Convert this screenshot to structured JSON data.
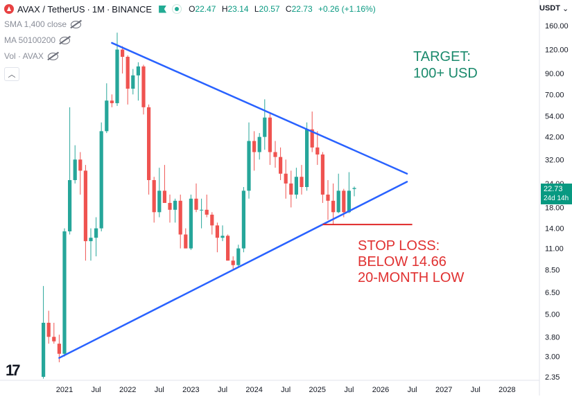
{
  "header": {
    "symbol": "AVAX / TetherUS",
    "interval": "1M",
    "exchange": "BINANCE",
    "ohlc": {
      "open_label": "O",
      "open": "22.47",
      "high_label": "H",
      "high": "23.14",
      "low_label": "L",
      "low": "20.57",
      "close_label": "C",
      "close": "22.73",
      "change": "+0.26 (+1.16%)"
    },
    "icons": [
      "avax-logo-icon",
      "flag-icon",
      "live-dot-icon"
    ]
  },
  "studies": [
    {
      "label": "SMA 1,400 close"
    },
    {
      "label": "MA 50100200"
    },
    {
      "label": "Vol · AVAX"
    }
  ],
  "currency_button": "USDT",
  "currency_caret": "⌄",
  "collapse_icon": "︿",
  "logo_text": "17",
  "price_tag": {
    "price": "22.73",
    "countdown": "24d 14h"
  },
  "annotations": {
    "target_line1": "TARGET:",
    "target_line2": "100+ USD",
    "stop_line1": "STOP LOSS:",
    "stop_line2": "BELOW 14.66",
    "stop_line3": "20-MONTH LOW"
  },
  "colors": {
    "up": "#26a69a",
    "down": "#ef5350",
    "trendline": "#2962ff",
    "stop_line": "#e02828",
    "target_text": "#1a8a6c",
    "price_tag": "#089981"
  },
  "chart_data": {
    "type": "candlestick",
    "scale": "log",
    "y_ticks": [
      160,
      120,
      90,
      70,
      54,
      42,
      32,
      24,
      18,
      14,
      11,
      8.5,
      6.5,
      5,
      3.8,
      3,
      2.35
    ],
    "y_tick_labels": [
      "160.00",
      "120.00",
      "90.00",
      "70.00",
      "54.00",
      "42.00",
      "32.00",
      "24.00",
      "18.00",
      "14.00",
      "11.00",
      "8.50",
      "6.50",
      "5.00",
      "3.80",
      "3.00",
      "2.35"
    ],
    "x_ticks": [
      "2021-01",
      "2021-07",
      "2022-01",
      "2022-07",
      "2023-01",
      "2023-07",
      "2024-01",
      "2024-07",
      "2025-01",
      "2025-07",
      "2026-01",
      "2026-07",
      "2027-01",
      "2027-07",
      "2028-01"
    ],
    "x_tick_labels": [
      "2021",
      "Jul",
      "2022",
      "Jul",
      "2023",
      "Jul",
      "2024",
      "Jul",
      "2025",
      "Jul",
      "2026",
      "Jul",
      "2027",
      "Jul",
      "2028"
    ],
    "candles": [
      {
        "d": "2020-09",
        "o": 2.35,
        "h": 7.0,
        "l": 2.3,
        "c": 4.5
      },
      {
        "d": "2020-10",
        "o": 4.5,
        "h": 5.2,
        "l": 3.5,
        "c": 3.8
      },
      {
        "d": "2020-11",
        "o": 3.8,
        "h": 4.5,
        "l": 3.5,
        "c": 3.6
      },
      {
        "d": "2020-12",
        "o": 3.5,
        "h": 3.9,
        "l": 2.8,
        "c": 3.1
      },
      {
        "d": "2021-01",
        "o": 3.1,
        "h": 14.0,
        "l": 3.0,
        "c": 13.5
      },
      {
        "d": "2021-02",
        "o": 13.5,
        "h": 60.0,
        "l": 13.0,
        "c": 25.0
      },
      {
        "d": "2021-03",
        "o": 25.0,
        "h": 38.0,
        "l": 24.0,
        "c": 32.0
      },
      {
        "d": "2021-04",
        "o": 32.0,
        "h": 35.0,
        "l": 21.0,
        "c": 28.0
      },
      {
        "d": "2021-05",
        "o": 28.0,
        "h": 30.0,
        "l": 9.5,
        "c": 12.0
      },
      {
        "d": "2021-06",
        "o": 12.0,
        "h": 14.0,
        "l": 9.5,
        "c": 12.5
      },
      {
        "d": "2021-07",
        "o": 12.5,
        "h": 16.0,
        "l": 10.0,
        "c": 14.0
      },
      {
        "d": "2021-08",
        "o": 14.0,
        "h": 50.0,
        "l": 13.5,
        "c": 45.0
      },
      {
        "d": "2021-09",
        "o": 45.0,
        "h": 80.0,
        "l": 44.0,
        "c": 65.0
      },
      {
        "d": "2021-10",
        "o": 65.0,
        "h": 70.0,
        "l": 60.0,
        "c": 63.0
      },
      {
        "d": "2021-11",
        "o": 63.0,
        "h": 147.0,
        "l": 61.0,
        "c": 120.0
      },
      {
        "d": "2021-12",
        "o": 120.0,
        "h": 125.0,
        "l": 90.0,
        "c": 110.0
      },
      {
        "d": "2022-01",
        "o": 110.0,
        "h": 112.0,
        "l": 62.0,
        "c": 75.0
      },
      {
        "d": "2022-02",
        "o": 75.0,
        "h": 95.0,
        "l": 70.0,
        "c": 88.0
      },
      {
        "d": "2022-03",
        "o": 88.0,
        "h": 103.0,
        "l": 65.0,
        "c": 98.0
      },
      {
        "d": "2022-04",
        "o": 98.0,
        "h": 100.0,
        "l": 55.0,
        "c": 60.0
      },
      {
        "d": "2022-05",
        "o": 60.0,
        "h": 62.0,
        "l": 21.0,
        "c": 25.0
      },
      {
        "d": "2022-06",
        "o": 25.0,
        "h": 26.0,
        "l": 15.0,
        "c": 17.0
      },
      {
        "d": "2022-07",
        "o": 17.0,
        "h": 29.0,
        "l": 16.0,
        "c": 22.0
      },
      {
        "d": "2022-08",
        "o": 22.0,
        "h": 30.0,
        "l": 19.0,
        "c": 19.0
      },
      {
        "d": "2022-09",
        "o": 19.0,
        "h": 21.0,
        "l": 15.0,
        "c": 17.5
      },
      {
        "d": "2022-10",
        "o": 17.5,
        "h": 20.0,
        "l": 15.0,
        "c": 19.5
      },
      {
        "d": "2022-11",
        "o": 19.5,
        "h": 21.0,
        "l": 11.0,
        "c": 13.0
      },
      {
        "d": "2022-12",
        "o": 13.0,
        "h": 14.0,
        "l": 11.0,
        "c": 11.0
      },
      {
        "d": "2023-01",
        "o": 11.0,
        "h": 21.0,
        "l": 10.8,
        "c": 20.0
      },
      {
        "d": "2023-02",
        "o": 20.0,
        "h": 24.0,
        "l": 17.0,
        "c": 17.5
      },
      {
        "d": "2023-03",
        "o": 17.5,
        "h": 20.0,
        "l": 14.0,
        "c": 17.5
      },
      {
        "d": "2023-04",
        "o": 17.5,
        "h": 21.0,
        "l": 16.0,
        "c": 16.5
      },
      {
        "d": "2023-05",
        "o": 16.5,
        "h": 17.0,
        "l": 13.0,
        "c": 14.5
      },
      {
        "d": "2023-06",
        "o": 14.5,
        "h": 15.0,
        "l": 10.5,
        "c": 12.5
      },
      {
        "d": "2023-07",
        "o": 12.5,
        "h": 14.5,
        "l": 12.0,
        "c": 12.8
      },
      {
        "d": "2023-08",
        "o": 12.8,
        "h": 13.0,
        "l": 9.5,
        "c": 9.5
      },
      {
        "d": "2023-09",
        "o": 9.5,
        "h": 10.0,
        "l": 8.6,
        "c": 9.0
      },
      {
        "d": "2023-10",
        "o": 9.0,
        "h": 11.5,
        "l": 8.8,
        "c": 11.0
      },
      {
        "d": "2023-11",
        "o": 11.0,
        "h": 23.0,
        "l": 10.5,
        "c": 22.0
      },
      {
        "d": "2023-12",
        "o": 22.0,
        "h": 50.0,
        "l": 20.0,
        "c": 40.0
      },
      {
        "d": "2024-01",
        "o": 40.0,
        "h": 45.0,
        "l": 28.0,
        "c": 35.0
      },
      {
        "d": "2024-02",
        "o": 35.0,
        "h": 44.0,
        "l": 32.0,
        "c": 42.0
      },
      {
        "d": "2024-03",
        "o": 42.0,
        "h": 66.0,
        "l": 36.0,
        "c": 53.0
      },
      {
        "d": "2024-04",
        "o": 53.0,
        "h": 56.0,
        "l": 30.0,
        "c": 35.0
      },
      {
        "d": "2024-05",
        "o": 35.0,
        "h": 40.0,
        "l": 29.0,
        "c": 33.0
      },
      {
        "d": "2024-06",
        "o": 33.0,
        "h": 37.0,
        "l": 25.0,
        "c": 27.0
      },
      {
        "d": "2024-07",
        "o": 27.0,
        "h": 32.0,
        "l": 20.0,
        "c": 24.0
      },
      {
        "d": "2024-08",
        "o": 24.0,
        "h": 28.0,
        "l": 18.0,
        "c": 21.0
      },
      {
        "d": "2024-09",
        "o": 21.0,
        "h": 29.0,
        "l": 20.0,
        "c": 26.0
      },
      {
        "d": "2024-10",
        "o": 26.0,
        "h": 30.0,
        "l": 21.0,
        "c": 23.0
      },
      {
        "d": "2024-11",
        "o": 23.0,
        "h": 50.0,
        "l": 22.0,
        "c": 46.0
      },
      {
        "d": "2024-12",
        "o": 46.0,
        "h": 57.0,
        "l": 35.0,
        "c": 37.0
      },
      {
        "d": "2025-01",
        "o": 37.0,
        "h": 45.0,
        "l": 30.0,
        "c": 34.0
      },
      {
        "d": "2025-02",
        "o": 34.0,
        "h": 35.0,
        "l": 19.0,
        "c": 21.0
      },
      {
        "d": "2025-03",
        "o": 21.0,
        "h": 25.0,
        "l": 15.5,
        "c": 19.5
      },
      {
        "d": "2025-04",
        "o": 19.5,
        "h": 24.0,
        "l": 14.7,
        "c": 17.0
      },
      {
        "d": "2025-05",
        "o": 17.0,
        "h": 27.0,
        "l": 16.8,
        "c": 22.0
      },
      {
        "d": "2025-06",
        "o": 22.0,
        "h": 22.5,
        "l": 16.0,
        "c": 17.0
      },
      {
        "d": "2025-07",
        "o": 17.0,
        "h": 27.5,
        "l": 16.8,
        "c": 22.0
      },
      {
        "d": "2025-08",
        "o": 22.47,
        "h": 23.14,
        "l": 20.57,
        "c": 22.73
      }
    ],
    "trendlines": [
      {
        "name": "descending resistance",
        "from": {
          "d": "2021-10",
          "v": 130
        },
        "to": {
          "d": "2026-06",
          "v": 27
        }
      },
      {
        "name": "ascending support",
        "from": {
          "d": "2020-12",
          "v": 2.95
        },
        "to": {
          "d": "2026-06",
          "v": 24.5
        }
      }
    ],
    "horizontal_lines": [
      {
        "name": "stop loss",
        "value": 14.66,
        "from": "2025-02",
        "to": "2026-07"
      }
    ],
    "last_price": 22.73
  }
}
